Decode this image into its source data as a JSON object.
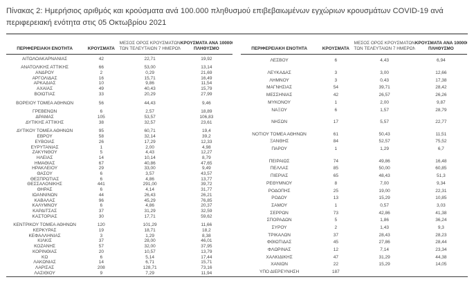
{
  "page": {
    "title": "Πίνακας 2: Ημερήσιος αριθμός και κρούσματα ανά 100.000 πληθυσμού επιβεβαιωμένων εγχώριων κρουσμάτων COVID-19 ανά περιφερειακή ενότητα στις 05 Οκτωβρίου 2021"
  },
  "colors": {
    "text": "#474747",
    "heading": "#2b2b2b",
    "title_rule": "#8c8c8c",
    "table_rule": "#2f2f2f"
  },
  "table_headers": {
    "region": "ΠΕΡΙΦΕΡΕΙΑΚΗ ΕΝΟΤΗΤΑ",
    "cases": "ΚΡΟΥΣΜΑΤΑ",
    "avg7_line1": "ΜΕΣΟΣ ΟΡΟΣ ΚΡΟΥΣΜΑΤΩΝ",
    "avg7_line2": "ΤΩΝ ΤΕΛΕΥΤΑΙΩΝ 7 ΗΜΕΡΩΝ",
    "per100k_line1": "ΚΡΟΥΣΜΑΤΑ ΑΝΑ 100000",
    "per100k_line2": "ΠΛΗΘΥΣΜΟ"
  },
  "tables": {
    "left": {
      "rows": [
        [
          "ΑΙΤΩΛΟΑΚΑΡΝΑΝΙΑΣ",
          "42",
          "22,71",
          "19,92"
        ],
        null,
        [
          "ΑΝΑΤΟΛΙΚΗΣ ΑΤΤΙΚΗΣ",
          "66",
          "53,00",
          "13,14"
        ],
        [
          "ΑΝΔΡΟΥ",
          "2",
          "0,29",
          "21,69"
        ],
        [
          "ΑΡΓΟΛΙΔΑΣ",
          "16",
          "15,71",
          "16,49"
        ],
        [
          "ΑΡΚΑΔΙΑΣ",
          "10",
          "9,86",
          "11,54"
        ],
        [
          "ΑΧΑΪΑΣ",
          "49",
          "40,43",
          "15,79"
        ],
        [
          "ΒΟΙΩΤΙΑΣ",
          "33",
          "20,29",
          "27,99"
        ],
        null,
        [
          "ΒΟΡΕΙΟΥ ΤΟΜΕΑ ΑΘΗΝΩΝ",
          "56",
          "44,43",
          "9,46"
        ],
        null,
        [
          "ΓΡΕΒΕΝΩΝ",
          "6",
          "2,57",
          "18,89"
        ],
        [
          "ΔΡΑΜΑΣ",
          "105",
          "53,57",
          "106,83"
        ],
        [
          "ΔΥΤΙΚΗΣ ΑΤΤΙΚΗΣ",
          "38",
          "32,57",
          "23,61"
        ],
        null,
        [
          "ΔΥΤΙΚΟΥ ΤΟΜΕΑ ΑΘΗΝΩΝ",
          "95",
          "60,71",
          "19,4"
        ],
        [
          "ΕΒΡΟΥ",
          "58",
          "32,14",
          "39,2"
        ],
        [
          "ΕΥΒΟΙΑΣ",
          "26",
          "17,29",
          "12,33"
        ],
        [
          "ΕΥΡΥΤΑΝΙΑΣ",
          "1",
          "2,00",
          "4,98"
        ],
        [
          "ΖΑΚΥΝΘΟΥ",
          "5",
          "4,43",
          "12,27"
        ],
        [
          "ΗΛΕΙΑΣ",
          "14",
          "10,14",
          "8,79"
        ],
        [
          "ΗΜΑΘΙΑΣ",
          "67",
          "40,86",
          "47,65"
        ],
        [
          "ΗΡΑΚΛΕΙΟΥ",
          "29",
          "33,00",
          "9,49"
        ],
        [
          "ΘΑΣΟΥ",
          "6",
          "3,57",
          "43,57"
        ],
        [
          "ΘΕΣΠΡΩΤΙΑΣ",
          "6",
          "4,86",
          "13,77"
        ],
        [
          "ΘΕΣΣΑΛΟΝΙΚΗΣ",
          "441",
          "291,00",
          "39,72"
        ],
        [
          "ΘΗΡΑΣ",
          "6",
          "4,14",
          "31,77"
        ],
        [
          "ΙΩΑΝΝΙΝΩΝ",
          "44",
          "26,43",
          "26,21"
        ],
        [
          "ΚΑΒΑΛΑΣ",
          "96",
          "45,29",
          "76,85"
        ],
        [
          "ΚΑΛΥΜΝΟΥ",
          "6",
          "4,86",
          "20,37"
        ],
        [
          "ΚΑΡΔΙΤΣΑΣ",
          "37",
          "31,29",
          "32,59"
        ],
        [
          "ΚΑΣΤΟΡΙΑΣ",
          "30",
          "17,71",
          "59,62"
        ],
        null,
        [
          "ΚΕΝΤΡΙΚΟΥ ΤΟΜΕΑ ΑΘΗΝΩΝ",
          "120",
          "101,29",
          "11,66"
        ],
        [
          "ΚΕΡΚΥΡΑΣ",
          "19",
          "18,71",
          "18,2"
        ],
        [
          "ΚΕΦΑΛΛΗΝΙΑΣ",
          "3",
          "1,29",
          "8,38"
        ],
        [
          "ΚΙΛΚΙΣ",
          "37",
          "28,00",
          "46,01"
        ],
        [
          "ΚΟΖΑΝΗΣ",
          "57",
          "32,00",
          "37,95"
        ],
        [
          "ΚΟΡΙΝΘΙΑΣ",
          "20",
          "10,57",
          "13,79"
        ],
        [
          "ΚΩ",
          "6",
          "5,14",
          "17,44"
        ],
        [
          "ΛΑΚΩΝΙΑΣ",
          "14",
          "6,71",
          "15,71"
        ],
        [
          "ΛΑΡΙΣΑΣ",
          "208",
          "128,71",
          "73,16"
        ],
        [
          "ΛΑΣΙΘΙΟΥ",
          "9",
          "7,29",
          "11,94"
        ]
      ]
    },
    "right": {
      "rows": [
        [
          "ΛΕΣΒΟΥ",
          "6",
          "4,43",
          "6,94"
        ],
        null,
        [
          "ΛΕΥΚΑΔΑΣ",
          "3",
          "3,00",
          "12,66"
        ],
        [
          "ΛΗΜΝΟΥ",
          "3",
          "0,43",
          "17,38"
        ],
        [
          "ΜΑΓΝΗΣΙΑΣ",
          "54",
          "39,71",
          "28,42"
        ],
        [
          "ΜΕΣΣΗΝΙΑΣ",
          "42",
          "26,57",
          "26,26"
        ],
        [
          "ΜΥΚΟΝΟΥ",
          "1",
          "2,00",
          "9,87"
        ],
        [
          "ΝΑΞΟΥ",
          "6",
          "1,57",
          "28,79"
        ],
        null,
        [
          "ΝΗΣΩΝ",
          "17",
          "5,57",
          "22,77"
        ],
        null,
        [
          "ΝΟΤΙΟΥ ΤΟΜΕΑ ΑΘΗΝΩΝ",
          "61",
          "50,43",
          "11,51"
        ],
        [
          "ΞΑΝΘΗΣ",
          "84",
          "52,57",
          "75,52"
        ],
        [
          "ΠΑΡΟΥ",
          "1",
          "1,29",
          "6,7"
        ],
        null,
        [
          "ΠΕΙΡΑΙΩΣ",
          "74",
          "49,86",
          "16,48"
        ],
        [
          "ΠΕΛΛΑΣ",
          "85",
          "50,00",
          "60,85"
        ],
        [
          "ΠΙΕΡΙΑΣ",
          "65",
          "48,43",
          "51,3"
        ],
        [
          "ΡΕΘΥΜΝΟΥ",
          "8",
          "7,00",
          "9,34"
        ],
        [
          "ΡΟΔΟΠΗΣ",
          "25",
          "19,00",
          "22,31"
        ],
        [
          "ΡΟΔΟΥ",
          "13",
          "15,29",
          "10,85"
        ],
        [
          "ΣΑΜΟΥ",
          "1",
          "0,57",
          "3,03"
        ],
        [
          "ΣΕΡΡΩΝ",
          "73",
          "42,86",
          "41,38"
        ],
        [
          "ΣΠΟΡΑΔΩΝ",
          "5",
          "1,86",
          "36,24"
        ],
        [
          "ΣΥΡΟΥ",
          "2",
          "1,43",
          "9,3"
        ],
        [
          "ΤΡΙΚΑΛΩΝ",
          "37",
          "28,43",
          "28,23"
        ],
        [
          "ΦΘΙΩΤΙΔΑΣ",
          "45",
          "27,86",
          "28,44"
        ],
        [
          "ΦΛΩΡΙΝΑΣ",
          "12",
          "7,14",
          "23,34"
        ],
        [
          "ΧΑΛΚΙΔΙΚΗΣ",
          "47",
          "31,29",
          "44,38"
        ],
        [
          "ΧΑΝΙΩΝ",
          "22",
          "15,29",
          "14,05"
        ],
        [
          "ΥΠΟ ΔΙΕΡΕΥΝΗΣΗ",
          "187",
          "",
          ""
        ]
      ]
    }
  }
}
